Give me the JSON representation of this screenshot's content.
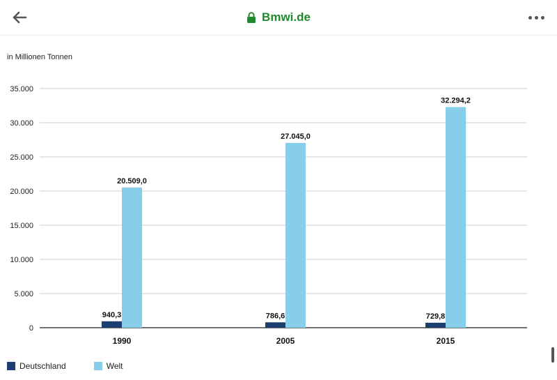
{
  "browser": {
    "url": "Bmwi.de",
    "back_icon": "arrow-left-icon",
    "lock_icon": "lock-icon",
    "menu_icon": "more-horizontal-icon"
  },
  "chart_data": {
    "type": "bar",
    "ylabel": "in Millionen Tonnen",
    "categories": [
      "1990",
      "2005",
      "2015"
    ],
    "series": [
      {
        "name": "Deutschland",
        "color": "#1b3f6e",
        "values": [
          940.3,
          786.6,
          729.8
        ],
        "labels": [
          "940,3",
          "786,6",
          "729,8"
        ]
      },
      {
        "name": "Welt",
        "color": "#87ceeb",
        "values": [
          20509.0,
          27045.0,
          32294.2
        ],
        "labels": [
          "20.509,0",
          "27.045,0",
          "32.294,2"
        ]
      }
    ],
    "ylim": [
      0,
      35000
    ],
    "yticks": [
      0,
      5000,
      10000,
      15000,
      20000,
      25000,
      30000,
      35000
    ],
    "ytick_labels": [
      "0",
      "5.000",
      "10.000",
      "15.000",
      "20.000",
      "25.000",
      "30.000",
      "35.000"
    ],
    "grid": true,
    "legend": "bottom-left"
  }
}
